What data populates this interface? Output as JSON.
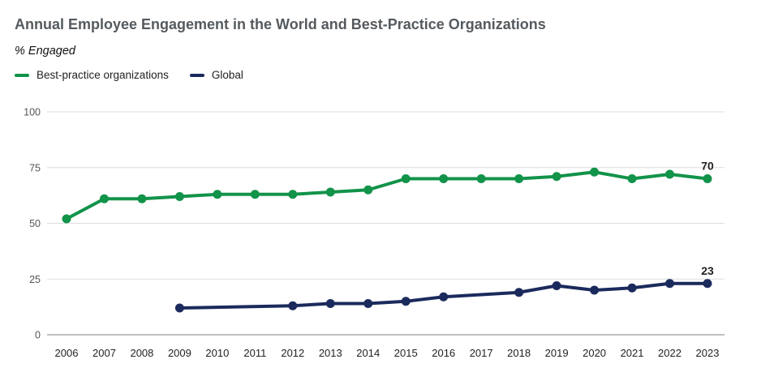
{
  "title": "Annual Employee Engagement in the World and Best-Practice Organizations",
  "subtitle": "% Engaged",
  "colors": {
    "best_practice": "#12934a",
    "global": "#1b2a5c",
    "grid": "#dddddd",
    "axis": "#9a9a9a"
  },
  "chart_data": {
    "type": "line",
    "title": "Annual Employee Engagement in the World and Best-Practice Organizations",
    "subtitle": "% Engaged",
    "xlabel": "",
    "ylabel": "",
    "ylim": [
      0,
      100
    ],
    "yticks": [
      "0",
      "25",
      "50",
      "75",
      "100"
    ],
    "grid": true,
    "legend_position": "top-left",
    "x": [
      "2006",
      "2007",
      "2008",
      "2009",
      "2010",
      "2011",
      "2012",
      "2013",
      "2014",
      "2015",
      "2016",
      "2017",
      "2018",
      "2019",
      "2020",
      "2021",
      "2022",
      "2023"
    ],
    "series": [
      {
        "name": "Best-practice organizations",
        "color": "#12934a",
        "values": [
          52,
          61,
          61,
          62,
          63,
          63,
          63,
          64,
          65,
          70,
          70,
          70,
          70,
          71,
          73,
          70,
          72,
          70
        ],
        "end_label": "70"
      },
      {
        "name": "Global",
        "color": "#1b2a5c",
        "values": [
          null,
          null,
          null,
          12,
          null,
          null,
          13,
          14,
          14,
          15,
          17,
          null,
          19,
          22,
          20,
          21,
          23,
          23
        ],
        "end_label": "23"
      }
    ]
  }
}
